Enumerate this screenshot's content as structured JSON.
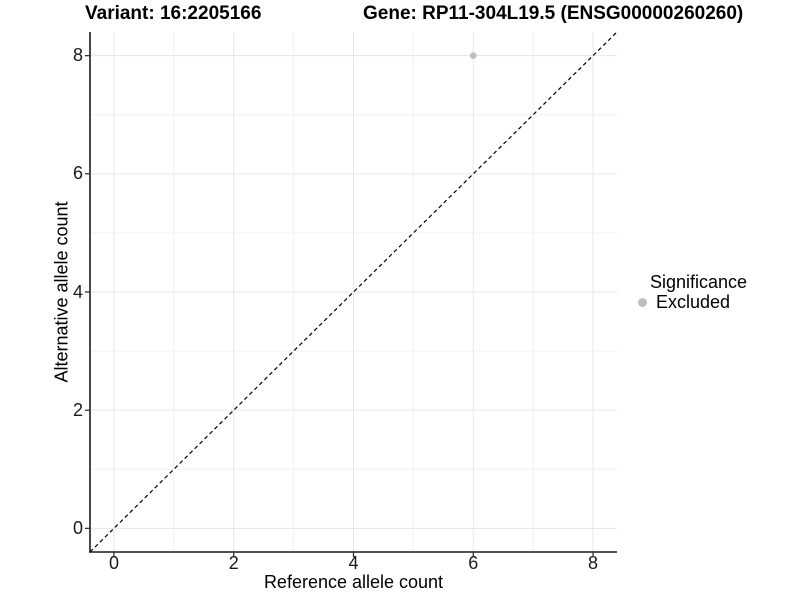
{
  "chart_data": {
    "type": "scatter",
    "variant_title": "Variant: 16:2205166",
    "gene_title": "Gene: RP11-304L19.5 (ENSG00000260260)",
    "xlabel": "Reference allele count",
    "ylabel": "Alternative allele count",
    "xlim": [
      -0.4,
      8.4
    ],
    "ylim": [
      -0.4,
      8.4
    ],
    "x_major_ticks": [
      0,
      2,
      4,
      6,
      8
    ],
    "y_major_ticks": [
      0,
      2,
      4,
      6,
      8
    ],
    "x_minor_gridlines": [
      1,
      3,
      5,
      7
    ],
    "y_minor_gridlines": [
      1,
      3,
      5,
      7
    ],
    "grid": "on",
    "reference_line": {
      "style": "dashed",
      "slope": 1,
      "intercept": 0
    },
    "series": [
      {
        "name": "Excluded",
        "color": "#bdbdbd",
        "points": [
          {
            "x": 6,
            "y": 8
          }
        ]
      }
    ],
    "legend": {
      "title": "Significance",
      "position": "right",
      "items": [
        {
          "label": "Excluded",
          "color": "#bdbdbd"
        }
      ]
    }
  },
  "colors": {
    "background": "#ffffff",
    "grid_major": "#e6e6e6",
    "grid_minor": "#f2f2f2",
    "axis_line": "#1a1a1a",
    "tick_mark": "#333333",
    "reference_line": "#000000",
    "point": "#bdbdbd"
  }
}
